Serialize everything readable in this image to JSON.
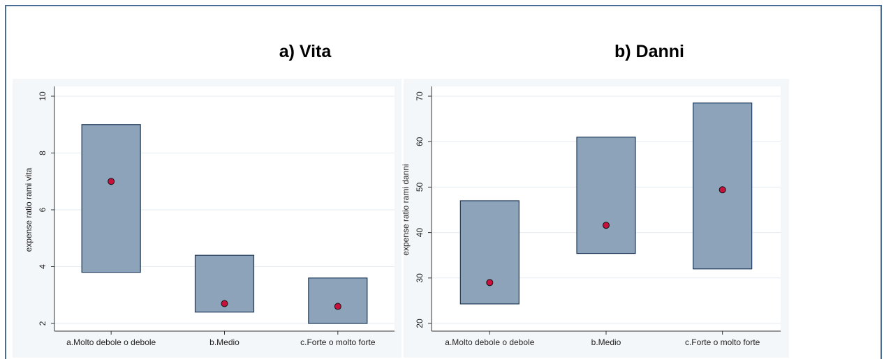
{
  "chart_data": [
    {
      "type": "range",
      "title": "a)  Vita",
      "ylabel": "expense ratio rami vita",
      "categories": [
        "a.Molto debole o debole",
        "b.Medio",
        "c.Forte o molto forte"
      ],
      "low": [
        3.8,
        2.4,
        2.0
      ],
      "high": [
        9.0,
        4.4,
        3.6
      ],
      "values": [
        7.0,
        2.7,
        2.6
      ],
      "box_color": "#8da3ba",
      "dot_color": "#c8103c",
      "ylim": [
        2,
        10
      ],
      "yticks": [
        2,
        4,
        6,
        8,
        10
      ],
      "grid": true
    },
    {
      "type": "range",
      "title": "b) Danni",
      "ylabel": "expense ratio rami danni",
      "categories": [
        "a.Molto debole o debole",
        "b.Medio",
        "c.Forte o molto forte"
      ],
      "low": [
        24.3,
        35.4,
        32.0
      ],
      "high": [
        47.0,
        61.0,
        68.5
      ],
      "values": [
        29.0,
        41.6,
        49.4
      ],
      "box_color": "#8da3ba",
      "dot_color": "#c8103c",
      "ylim": [
        20,
        70
      ],
      "yticks": [
        20,
        30,
        40,
        50,
        60,
        70
      ],
      "grid": true
    }
  ]
}
